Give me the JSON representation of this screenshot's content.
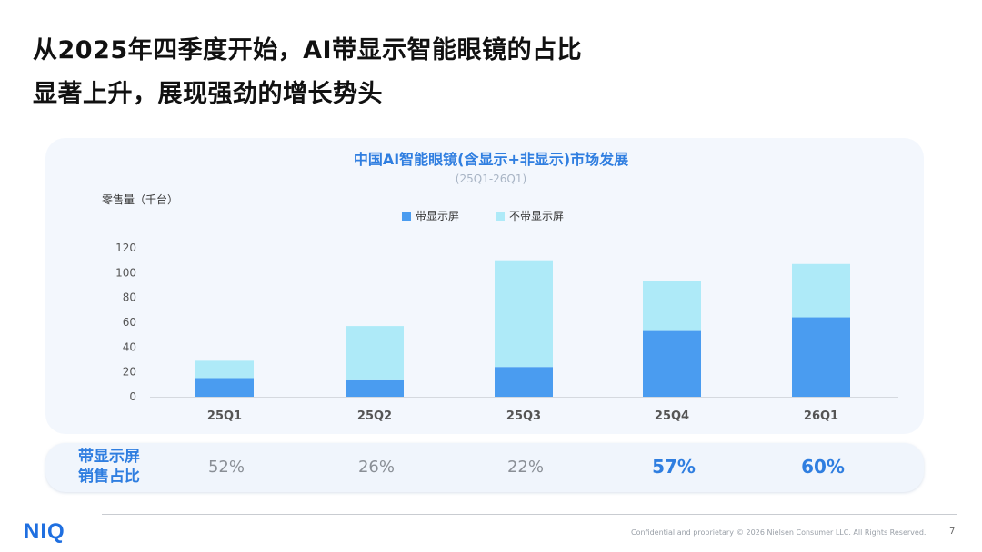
{
  "headline": {
    "line1": "从2025年四季度开始，AI带显示智能眼镜的占比",
    "line2": "显著上升，展现强劲的增长势头"
  },
  "chart_data": {
    "type": "bar",
    "stacked": true,
    "title": "中国AI智能眼镜(含显示+非显示)市场发展",
    "subtitle": "(25Q1-26Q1)",
    "ylabel": "零售量（千台）",
    "categories": [
      "25Q1",
      "25Q2",
      "25Q3",
      "25Q4",
      "26Q1"
    ],
    "ylim": [
      0,
      120
    ],
    "yticks": [
      0,
      20,
      40,
      60,
      80,
      100,
      120
    ],
    "grid": false,
    "legend_position": "top-center",
    "series": [
      {
        "name": "带显示屏",
        "color": "#4a9cf0",
        "values": [
          15,
          14,
          24,
          53,
          64
        ]
      },
      {
        "name": "不带显示屏",
        "color": "#aeeaf8",
        "values": [
          14,
          43,
          86,
          40,
          43
        ]
      }
    ]
  },
  "ratio_row": {
    "label_line1": "带显示屏",
    "label_line2": "销售占比",
    "values": [
      "52%",
      "26%",
      "22%",
      "57%",
      "60%"
    ],
    "highlight": [
      false,
      false,
      false,
      true,
      true
    ]
  },
  "footer": {
    "logo": "NIQ",
    "confidential": "Confidential and proprietary",
    "copyright": "© 2026 Nielsen Consumer LLC. All Rights Reserved.",
    "page": "7"
  },
  "colors": {
    "accent": "#2f7ee0",
    "display_bar": "#4a9cf0",
    "nondisplay_bar": "#aeeaf8"
  }
}
